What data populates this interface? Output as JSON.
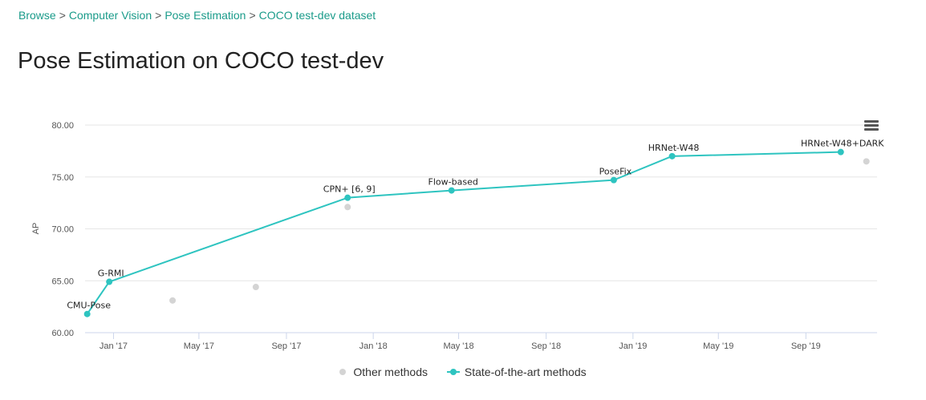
{
  "breadcrumb": {
    "items": [
      "Browse",
      "Computer Vision",
      "Pose Estimation",
      "COCO test-dev dataset"
    ],
    "separator": ">"
  },
  "page_title": "Pose Estimation on COCO test-dev",
  "menu_icon": "hamburger-menu-icon",
  "colors": {
    "sota": "#2ec4c0",
    "other": "#d4d4d4",
    "link": "#1a9b8a"
  },
  "chart_data": {
    "type": "line",
    "ylabel": "AP",
    "xlabel": "",
    "ylim": [
      60,
      80
    ],
    "yticks": [
      "60.00",
      "65.00",
      "70.00",
      "75.00",
      "80.00"
    ],
    "xlim": [
      "2016-11-22",
      "2019-12-10"
    ],
    "xticks": [
      {
        "date": "2017-01-01",
        "label": "Jan '17"
      },
      {
        "date": "2017-05-01",
        "label": "May '17"
      },
      {
        "date": "2017-09-01",
        "label": "Sep '17"
      },
      {
        "date": "2018-01-01",
        "label": "Jan '18"
      },
      {
        "date": "2018-05-01",
        "label": "May '18"
      },
      {
        "date": "2018-09-01",
        "label": "Sep '18"
      },
      {
        "date": "2019-01-01",
        "label": "Jan '19"
      },
      {
        "date": "2019-05-01",
        "label": "May '19"
      },
      {
        "date": "2019-09-01",
        "label": "Sep '19"
      }
    ],
    "grid": true,
    "legend_position": "bottom",
    "series": [
      {
        "name": "Other methods",
        "style": "scatter",
        "points": [
          {
            "x": "2017-03-25",
            "y": 63.1
          },
          {
            "x": "2017-07-20",
            "y": 64.4
          },
          {
            "x": "2017-11-26",
            "y": 72.1
          },
          {
            "x": "2019-11-25",
            "y": 76.5
          }
        ]
      },
      {
        "name": "State-of-the-art methods",
        "style": "line",
        "points": [
          {
            "x": "2016-11-25",
            "y": 61.8,
            "label": "CMU-Pose"
          },
          {
            "x": "2016-12-26",
            "y": 64.9,
            "label": "G-RMI"
          },
          {
            "x": "2017-11-26",
            "y": 73.0,
            "label": "CPN+ [6, 9]"
          },
          {
            "x": "2018-04-21",
            "y": 73.7,
            "label": "Flow-based"
          },
          {
            "x": "2018-12-05",
            "y": 74.7,
            "label": "PoseFix"
          },
          {
            "x": "2019-02-25",
            "y": 77.0,
            "label": "HRNet-W48"
          },
          {
            "x": "2019-10-20",
            "y": 77.4,
            "label": "HRNet-W48+DARK"
          }
        ]
      }
    ]
  }
}
